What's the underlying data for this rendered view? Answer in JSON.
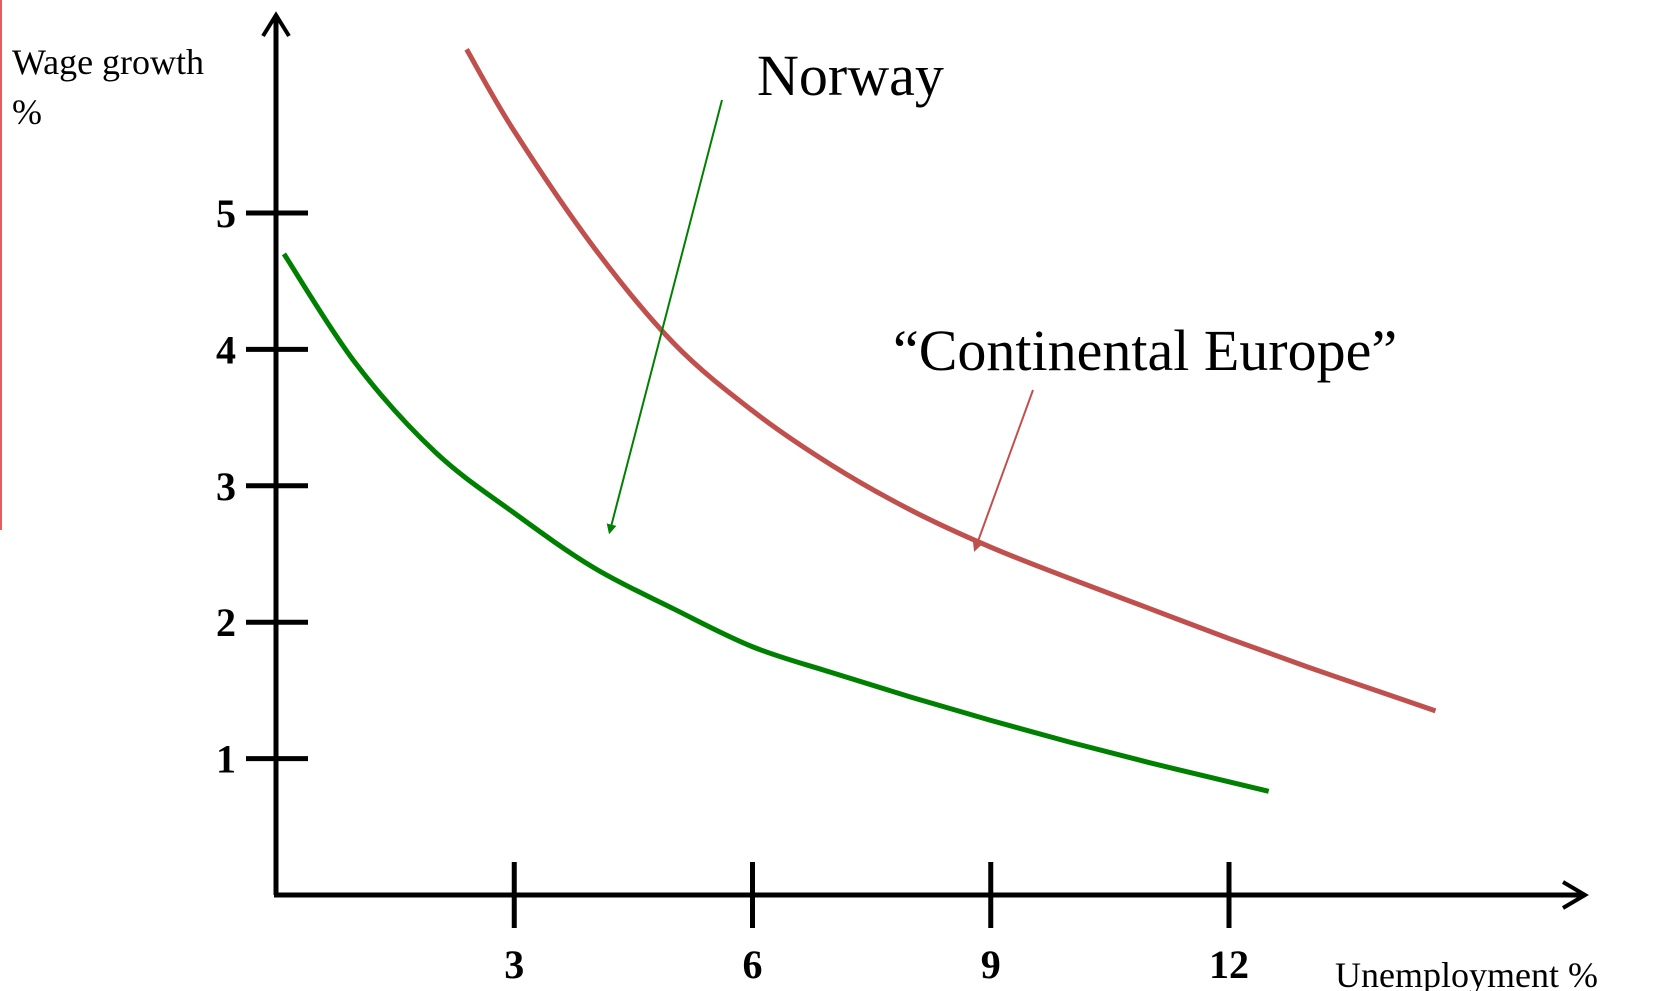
{
  "chart_data": {
    "type": "line",
    "title": "",
    "ylabel": "Wage growth",
    "ylabel_unit": "%",
    "xlabel": "Unemployment %",
    "xlim": [
      0,
      18
    ],
    "ylim": [
      0,
      6.5
    ],
    "x_ticks": [
      3,
      6,
      9,
      12
    ],
    "y_ticks": [
      1,
      2,
      3,
      4,
      5
    ],
    "grid": false,
    "legend": "none",
    "series": [
      {
        "name": "Norway",
        "color": "#008000",
        "points": [
          [
            0.1,
            4.7
          ],
          [
            1,
            3.9
          ],
          [
            2,
            3.25
          ],
          [
            3,
            2.8
          ],
          [
            4,
            2.4
          ],
          [
            5,
            2.1
          ],
          [
            6,
            1.82
          ],
          [
            7,
            1.63
          ],
          [
            8,
            1.45
          ],
          [
            9,
            1.28
          ],
          [
            10,
            1.12
          ],
          [
            11,
            0.97
          ],
          [
            12,
            0.83
          ],
          [
            12.5,
            0.76
          ]
        ]
      },
      {
        "name": "“Continental Europe”",
        "color": "#c0504d",
        "points": [
          [
            2.4,
            6.2
          ],
          [
            3,
            5.6
          ],
          [
            4,
            4.75
          ],
          [
            5,
            4.05
          ],
          [
            6,
            3.55
          ],
          [
            7,
            3.15
          ],
          [
            8,
            2.82
          ],
          [
            9,
            2.55
          ],
          [
            10,
            2.32
          ],
          [
            11,
            2.1
          ],
          [
            12,
            1.88
          ],
          [
            13,
            1.67
          ],
          [
            14,
            1.47
          ],
          [
            14.6,
            1.35
          ]
        ]
      }
    ],
    "annotations": [
      {
        "text": "Norway",
        "series": 0,
        "points_to": [
          4.2,
          2.6
        ]
      },
      {
        "text": "“Continental Europe”",
        "series": 1,
        "points_to": [
          8.9,
          2.5
        ]
      }
    ]
  }
}
